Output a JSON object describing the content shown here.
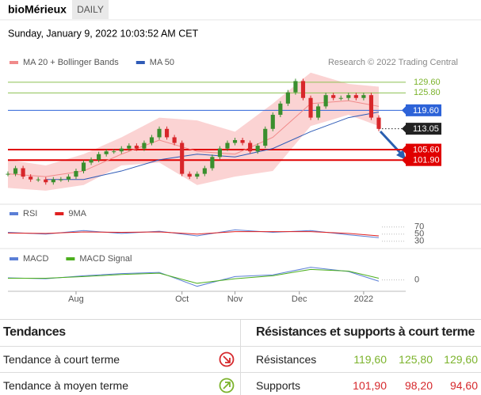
{
  "header": {
    "title": "bioMérieux",
    "period": "DAILY",
    "timestamp": "Sunday, January 9, 2022 10:03:52 AM CET",
    "credit": "Research © 2022 Trading Central"
  },
  "chart_data": [
    {
      "type": "candlestick",
      "x": [
        0,
        1,
        2,
        3,
        4,
        5,
        6,
        7,
        8,
        9,
        10,
        11,
        12,
        13,
        14,
        15,
        16,
        17,
        18,
        19,
        20,
        21,
        22,
        23,
        24,
        25,
        26,
        27,
        28,
        29,
        30,
        31,
        32,
        33,
        34,
        35,
        36,
        37,
        38,
        39,
        40,
        41,
        42,
        43,
        44,
        45,
        46,
        47,
        48,
        49
      ],
      "close": [
        97,
        99,
        96,
        95,
        95,
        94,
        95,
        95,
        96,
        98,
        101,
        102,
        104,
        105,
        105,
        106,
        107,
        106,
        108,
        110,
        113,
        110,
        108,
        97,
        96,
        97,
        99,
        103,
        106,
        108,
        109,
        108,
        105,
        107,
        113,
        118,
        122,
        126,
        130,
        124,
        117,
        121,
        125,
        124,
        124,
        125,
        124,
        125,
        117,
        113
      ],
      "up_color": "#3a8f2e",
      "down_color": "#d8262a",
      "overlays": [
        {
          "name": "MA 20 + Bollinger Bands",
          "color": "#f08a8a",
          "band_color": "#fbd3d3",
          "x": [
            0,
            5,
            10,
            15,
            20,
            25,
            30,
            35,
            40,
            45,
            49
          ],
          "values": [
            97,
            96,
            98,
            104,
            109,
            105,
            104,
            110,
            122,
            123,
            121
          ],
          "upper": [
            102,
            100,
            104,
            110,
            117,
            116,
            112,
            122,
            133,
            129,
            128
          ],
          "lower": [
            92,
            91,
            93,
            100,
            101,
            93,
            96,
            98,
            114,
            118,
            114
          ]
        },
        {
          "name": "MA 50",
          "color": "#2f5bb7",
          "x": [
            5,
            10,
            15,
            20,
            25,
            30,
            35,
            40,
            45,
            49
          ],
          "values": [
            95,
            95,
            98,
            102,
            104,
            103,
            106,
            112,
            117,
            119
          ]
        }
      ],
      "levels": [
        {
          "value": 129.6,
          "label": "129.60",
          "color": "#8cc152",
          "boxed": false,
          "style": "solid"
        },
        {
          "value": 125.8,
          "label": "125.80",
          "color": "#8cc152",
          "boxed": false,
          "style": "solid"
        },
        {
          "value": 119.6,
          "label": "119.60",
          "color": "#2d63d8",
          "boxed": true,
          "style": "solid"
        },
        {
          "value": 113.05,
          "label": "113.05",
          "color": "#222222",
          "boxed": true,
          "style": "dotted"
        },
        {
          "value": 105.6,
          "label": "105.60",
          "color": "#e00000",
          "boxed": true,
          "style": "bold"
        },
        {
          "value": 101.9,
          "label": "101.90",
          "color": "#e00000",
          "boxed": true,
          "style": "bold"
        }
      ],
      "xlim": [
        0,
        49
      ],
      "ylim": [
        89,
        133.5
      ]
    },
    {
      "type": "line",
      "x": [
        0,
        5,
        10,
        15,
        20,
        25,
        30,
        35,
        40,
        45,
        49
      ],
      "series": [
        {
          "name": "RSI",
          "color": "#5b7fd6",
          "values": [
            55,
            50,
            60,
            52,
            58,
            45,
            62,
            55,
            60,
            48,
            40
          ]
        },
        {
          "name": "9MA",
          "color": "#e02020",
          "values": [
            53,
            52,
            56,
            55,
            56,
            50,
            57,
            57,
            57,
            52,
            45
          ]
        }
      ],
      "xlim": [
        0,
        49
      ],
      "ylim": [
        15,
        85
      ],
      "yticks": [
        30,
        50,
        70
      ]
    },
    {
      "type": "line",
      "x": [
        0,
        5,
        10,
        15,
        20,
        25,
        30,
        35,
        40,
        45,
        49
      ],
      "series": [
        {
          "name": "MACD",
          "color": "#5b7fd6",
          "values": [
            0.5,
            0.3,
            1,
            1.5,
            1.8,
            -1.5,
            0.8,
            1.2,
            3,
            2,
            -0.3
          ]
        },
        {
          "name": "MACD Signal",
          "color": "#4caf1e",
          "values": [
            0.4,
            0.4,
            0.8,
            1.3,
            1.6,
            -0.8,
            0.3,
            1,
            2.5,
            2.1,
            0.4
          ]
        }
      ],
      "xlim": [
        0,
        49
      ],
      "ylim": [
        -2.5,
        3.5
      ],
      "yticks": [
        0
      ],
      "xticks": [
        {
          "value": 9,
          "label": "Aug"
        },
        {
          "value": 23,
          "label": "Oct"
        },
        {
          "value": 30,
          "label": "Nov"
        },
        {
          "value": 38.5,
          "label": "Dec"
        },
        {
          "value": 47,
          "label": "2022"
        }
      ]
    }
  ],
  "table": {
    "left": {
      "header": "Tendances",
      "rows": [
        "Tendance à court terme",
        "Tendance à moyen terme"
      ]
    },
    "right": {
      "header": "Résistances et supports à court terme",
      "rows": [
        {
          "label": "Résistances",
          "values": [
            "119,60",
            "125,80",
            "129,60"
          ]
        },
        {
          "label": "Supports",
          "values": [
            "101,90",
            "98,20",
            "94,60"
          ]
        }
      ]
    }
  }
}
